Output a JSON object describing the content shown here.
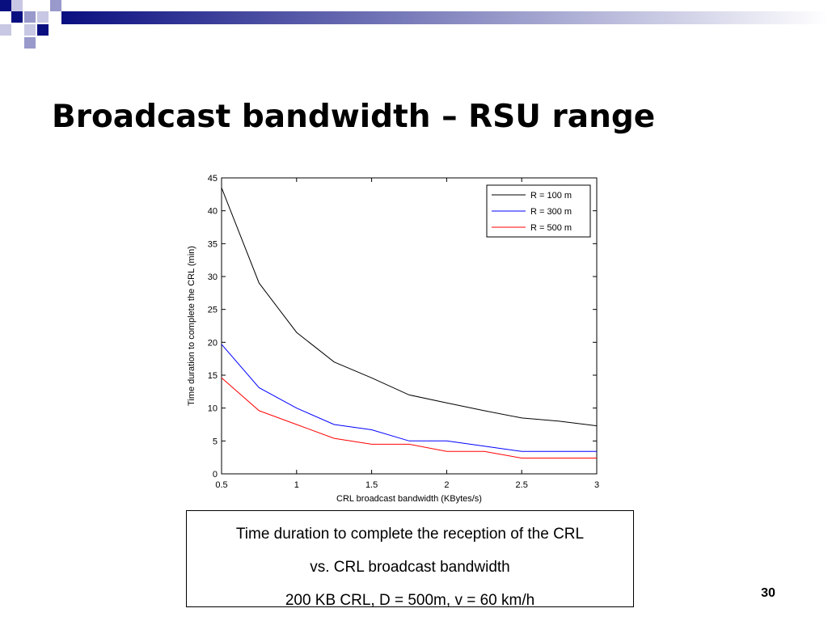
{
  "slide": {
    "title": "Broadcast bandwidth – RSU range",
    "caption": [
      "Time duration to complete the reception of the CRL",
      "vs. CRL broadcast bandwidth",
      "200 KB CRL, D = 500m, v = 60 km/h"
    ],
    "page_number": "30",
    "colors": {
      "deco_dark": "#0a0f80",
      "deco_light": "#9999cc"
    }
  },
  "chart_data": {
    "type": "line",
    "title": "",
    "xlabel": "CRL broadcast bandwidth (KBytes/s)",
    "ylabel": "Time duration to complete the CRL (min)",
    "xlim": [
      0.5,
      3
    ],
    "ylim": [
      0,
      45
    ],
    "xticks": [
      "0.5",
      "1",
      "1.5",
      "2",
      "2.5",
      "3"
    ],
    "yticks": [
      "0",
      "5",
      "10",
      "15",
      "20",
      "25",
      "30",
      "35",
      "40",
      "45"
    ],
    "x": [
      0.5,
      0.75,
      1.0,
      1.25,
      1.5,
      1.75,
      2.0,
      2.25,
      2.5,
      2.75,
      3.0
    ],
    "series": [
      {
        "name": "R = 100 m",
        "color": "#000000",
        "values": [
          43.5,
          29.0,
          21.5,
          17.0,
          14.6,
          12.0,
          10.8,
          9.6,
          8.5,
          8.0,
          7.3
        ]
      },
      {
        "name": "R = 300 m",
        "color": "#0000ff",
        "values": [
          19.7,
          13.1,
          10.0,
          7.5,
          6.7,
          5.0,
          5.0,
          4.2,
          3.4,
          3.4,
          3.4
        ]
      },
      {
        "name": "R = 500 m",
        "color": "#ff0000",
        "values": [
          14.6,
          9.6,
          7.5,
          5.4,
          4.5,
          4.5,
          3.4,
          3.4,
          2.4,
          2.4,
          2.4
        ]
      }
    ],
    "grid": false,
    "legend_position": "top-right"
  }
}
